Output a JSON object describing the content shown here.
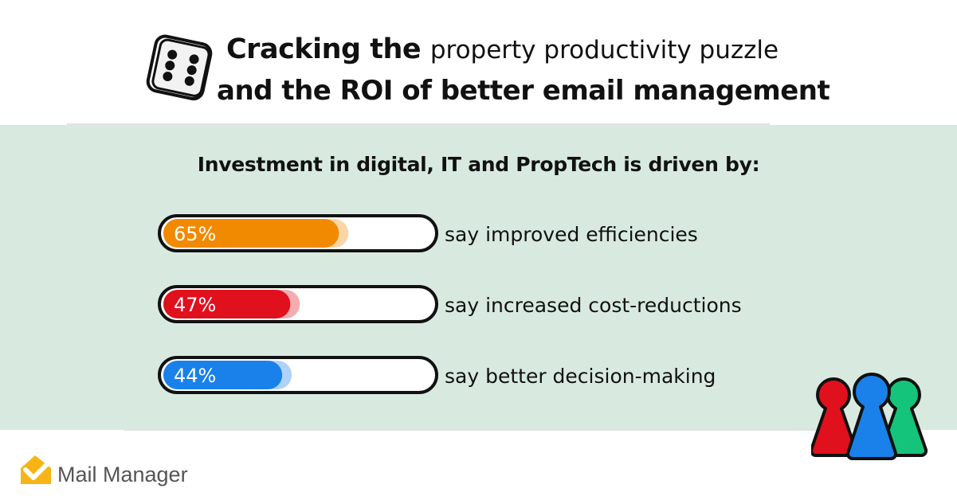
{
  "header": {
    "title_bold_part": "Cracking the",
    "title_light_part": "property productivity puzzle",
    "title_line2": "and the ROI of better email management",
    "dice_icon": "dice-five-icon"
  },
  "subtitle": "Investment in digital, IT and PropTech is driven by:",
  "colors": {
    "orange": "#f18a00",
    "red": "#e0101d",
    "blue": "#1a81ea",
    "panel": "#d8eadf",
    "logo_yellow": "#f7b515"
  },
  "chart_data": {
    "type": "bar",
    "orientation": "horizontal",
    "categories": [
      "say improved efficiencies",
      "say increased cost-reductions",
      "say better decision-making"
    ],
    "values": [
      65,
      47,
      44
    ],
    "value_labels": [
      "65%",
      "47%",
      "44%"
    ],
    "unit": "%",
    "xlim": [
      0,
      100
    ],
    "bar_colors": [
      "#f18a00",
      "#e0101d",
      "#1a81ea"
    ]
  },
  "footer": {
    "logo_icon": "mail-manager-logo-icon",
    "brand": "Mail Manager",
    "pawns_icon": "pawns-icon"
  }
}
